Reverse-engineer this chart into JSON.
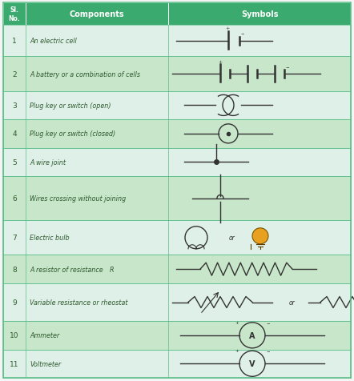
{
  "title_bg": "#3aaa6e",
  "header_text_color": "#ffffff",
  "row_bg_light": "#dff0e8",
  "row_bg_dark": "#c8e6c9",
  "border_color": "#5bbf8a",
  "text_color": "#2d5a2d",
  "sl_header": "Sl.\nNo.",
  "comp_header": "Components",
  "sym_header": "Symbols",
  "rows": [
    {
      "sl": "1",
      "comp": "An electric cell"
    },
    {
      "sl": "2",
      "comp": "A battery or a combination of cells"
    },
    {
      "sl": "3",
      "comp": "Plug key or switch (open)"
    },
    {
      "sl": "4",
      "comp": "Plug key or switch (closed)"
    },
    {
      "sl": "5",
      "comp": "A wire joint"
    },
    {
      "sl": "6",
      "comp": "Wires crossing without joining"
    },
    {
      "sl": "7",
      "comp": "Electric bulb"
    },
    {
      "sl": "8",
      "comp": "A resistor of resistance R"
    },
    {
      "sl": "9",
      "comp": "Variable resistance or rheostat"
    },
    {
      "sl": "10",
      "comp": "Ammeter"
    },
    {
      "sl": "11",
      "comp": "Voltmeter"
    }
  ],
  "row_heights": [
    1.0,
    1.1,
    0.9,
    0.9,
    0.9,
    1.4,
    1.1,
    0.9,
    1.2,
    0.9,
    0.9
  ],
  "fig_width": 4.42,
  "fig_height": 4.77
}
